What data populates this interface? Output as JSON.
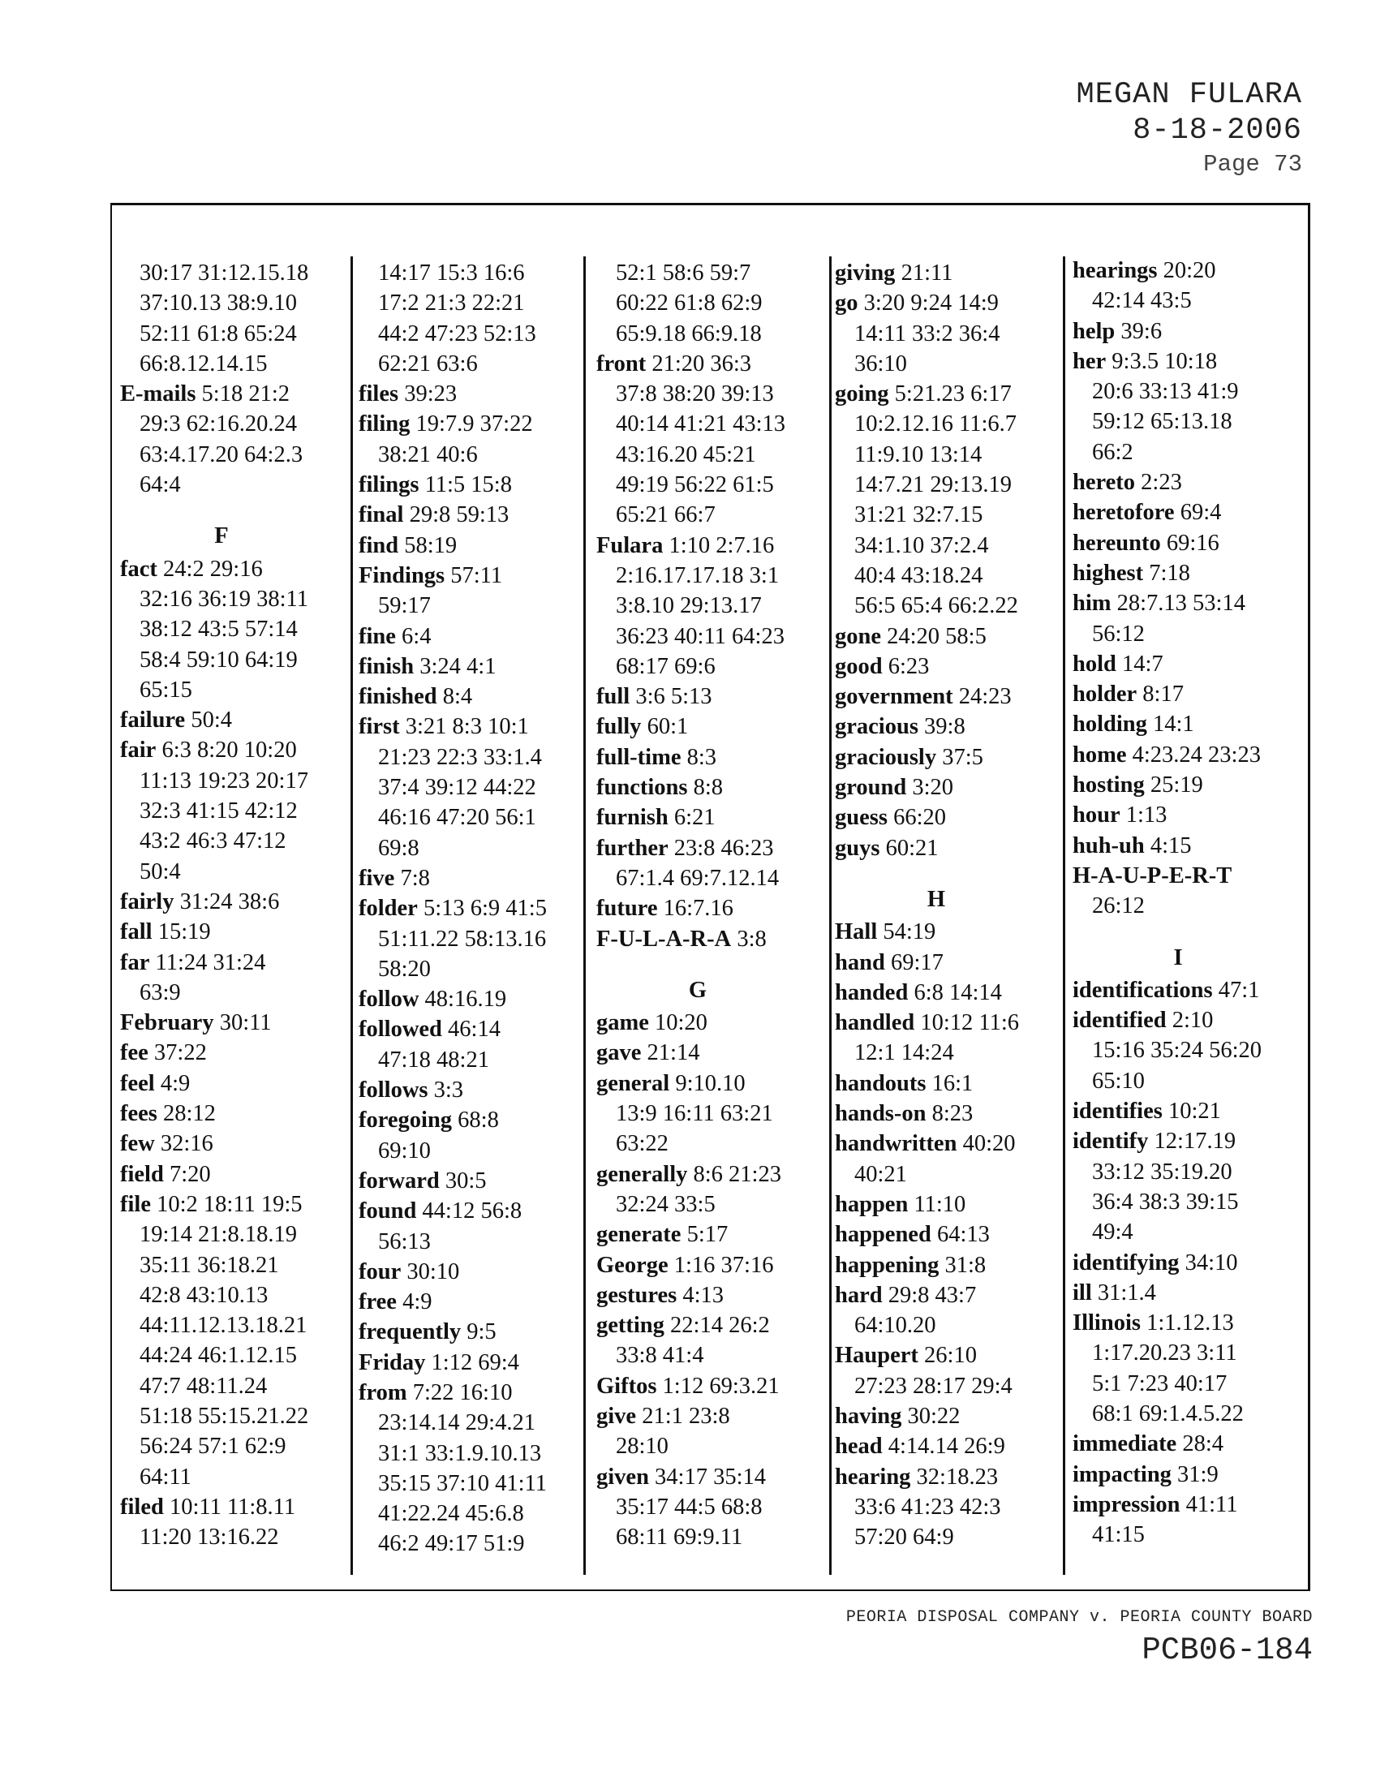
{
  "header": {
    "deponent": "MEGAN FULARA",
    "date": "8-18-2006",
    "page": "Page 73"
  },
  "footer": {
    "case_caption": "PEORIA DISPOSAL COMPANY v. PEORIA COUNTY BOARD",
    "case_number": "PCB06-184"
  },
  "columns": [
    {
      "entries": [
        {
          "term": "",
          "lines": [
            "30:17 31:12.15.18",
            "37:10.13 38:9.10",
            "52:11 61:8 65:24",
            "66:8.12.14.15"
          ]
        },
        {
          "term": "E-mails",
          "lines": [
            "5:18 21:2",
            "29:3 62:16.20.24",
            "63:4.17.20 64:2.3",
            "64:4"
          ]
        },
        {
          "letter": "F"
        },
        {
          "term": "fact",
          "lines": [
            "24:2 29:16",
            "32:16 36:19 38:11",
            "38:12 43:5 57:14",
            "58:4 59:10 64:19",
            "65:15"
          ]
        },
        {
          "term": "failure",
          "lines": [
            "50:4"
          ]
        },
        {
          "term": "fair",
          "lines": [
            "6:3 8:20 10:20",
            "11:13 19:23 20:17",
            "32:3 41:15 42:12",
            "43:2 46:3 47:12",
            "50:4"
          ]
        },
        {
          "term": "fairly",
          "lines": [
            "31:24 38:6"
          ]
        },
        {
          "term": "fall",
          "lines": [
            "15:19"
          ]
        },
        {
          "term": "far",
          "lines": [
            "11:24 31:24",
            "63:9"
          ]
        },
        {
          "term": "February",
          "lines": [
            "30:11"
          ]
        },
        {
          "term": "fee",
          "lines": [
            "37:22"
          ]
        },
        {
          "term": "feel",
          "lines": [
            "4:9"
          ]
        },
        {
          "term": "fees",
          "lines": [
            "28:12"
          ]
        },
        {
          "term": "few",
          "lines": [
            "32:16"
          ]
        },
        {
          "term": "field",
          "lines": [
            "7:20"
          ]
        },
        {
          "term": "file",
          "lines": [
            "10:2 18:11 19:5",
            "19:14 21:8.18.19",
            "35:11 36:18.21",
            "42:8 43:10.13",
            "44:11.12.13.18.21",
            "44:24 46:1.12.15",
            "47:7 48:11.24",
            "51:18 55:15.21.22",
            "56:24 57:1 62:9",
            "64:11"
          ]
        },
        {
          "term": "filed",
          "lines": [
            "10:11 11:8.11",
            "11:20 13:16.22"
          ]
        }
      ]
    },
    {
      "entries": [
        {
          "term": "",
          "lines": [
            "14:17 15:3 16:6",
            "17:2 21:3 22:21",
            "44:2 47:23 52:13",
            "62:21 63:6"
          ]
        },
        {
          "term": "files",
          "lines": [
            "39:23"
          ]
        },
        {
          "term": "filing",
          "lines": [
            "19:7.9 37:22",
            "38:21 40:6"
          ]
        },
        {
          "term": "filings",
          "lines": [
            "11:5 15:8"
          ]
        },
        {
          "term": "final",
          "lines": [
            "29:8 59:13"
          ]
        },
        {
          "term": "find",
          "lines": [
            "58:19"
          ]
        },
        {
          "term": "Findings",
          "lines": [
            "57:11",
            "59:17"
          ]
        },
        {
          "term": "fine",
          "lines": [
            "6:4"
          ]
        },
        {
          "term": "finish",
          "lines": [
            "3:24 4:1"
          ]
        },
        {
          "term": "finished",
          "lines": [
            "8:4"
          ]
        },
        {
          "term": "first",
          "lines": [
            "3:21 8:3 10:1",
            "21:23 22:3 33:1.4",
            "37:4 39:12 44:22",
            "46:16 47:20 56:1",
            "69:8"
          ]
        },
        {
          "term": "five",
          "lines": [
            "7:8"
          ]
        },
        {
          "term": "folder",
          "lines": [
            "5:13 6:9 41:5",
            "51:11.22 58:13.16",
            "58:20"
          ]
        },
        {
          "term": "follow",
          "lines": [
            "48:16.19"
          ]
        },
        {
          "term": "followed",
          "lines": [
            "46:14",
            "47:18 48:21"
          ]
        },
        {
          "term": "follows",
          "lines": [
            "3:3"
          ]
        },
        {
          "term": "foregoing",
          "lines": [
            "68:8",
            "69:10"
          ]
        },
        {
          "term": "forward",
          "lines": [
            "30:5"
          ]
        },
        {
          "term": "found",
          "lines": [
            "44:12 56:8",
            "56:13"
          ]
        },
        {
          "term": "four",
          "lines": [
            "30:10"
          ]
        },
        {
          "term": "free",
          "lines": [
            "4:9"
          ]
        },
        {
          "term": "frequently",
          "lines": [
            "9:5"
          ]
        },
        {
          "term": "Friday",
          "lines": [
            "1:12 69:4"
          ]
        },
        {
          "term": "from",
          "lines": [
            "7:22 16:10",
            "23:14.14 29:4.21",
            "31:1 33:1.9.10.13",
            "35:15 37:10 41:11",
            "41:22.24 45:6.8",
            "46:2 49:17 51:9"
          ]
        }
      ]
    },
    {
      "entries": [
        {
          "term": "",
          "lines": [
            "52:1 58:6 59:7",
            "60:22 61:8 62:9",
            "65:9.18 66:9.18"
          ]
        },
        {
          "term": "front",
          "lines": [
            "21:20 36:3",
            "37:8 38:20 39:13",
            "40:14 41:21 43:13",
            "43:16.20 45:21",
            "49:19 56:22 61:5",
            "65:21 66:7"
          ]
        },
        {
          "term": "Fulara",
          "lines": [
            "1:10 2:7.16",
            "2:16.17.17.18 3:1",
            "3:8.10 29:13.17",
            "36:23 40:11 64:23",
            "68:17 69:6"
          ]
        },
        {
          "term": "full",
          "lines": [
            "3:6 5:13"
          ]
        },
        {
          "term": "fully",
          "lines": [
            "60:1"
          ]
        },
        {
          "term": "full-time",
          "lines": [
            "8:3"
          ]
        },
        {
          "term": "functions",
          "lines": [
            "8:8"
          ]
        },
        {
          "term": "furnish",
          "lines": [
            "6:21"
          ]
        },
        {
          "term": "further",
          "lines": [
            "23:8 46:23",
            "67:1.4 69:7.12.14"
          ]
        },
        {
          "term": "future",
          "lines": [
            "16:7.16"
          ]
        },
        {
          "term": "F-U-L-A-R-A",
          "lines": [
            "3:8"
          ]
        },
        {
          "letter": "G"
        },
        {
          "term": "game",
          "lines": [
            "10:20"
          ]
        },
        {
          "term": "gave",
          "lines": [
            "21:14"
          ]
        },
        {
          "term": "general",
          "lines": [
            "9:10.10",
            "13:9 16:11 63:21",
            "63:22"
          ]
        },
        {
          "term": "generally",
          "lines": [
            "8:6 21:23",
            "32:24 33:5"
          ]
        },
        {
          "term": "generate",
          "lines": [
            "5:17"
          ]
        },
        {
          "term": "George",
          "lines": [
            "1:16 37:16"
          ]
        },
        {
          "term": "gestures",
          "lines": [
            "4:13"
          ]
        },
        {
          "term": "getting",
          "lines": [
            "22:14 26:2",
            "33:8 41:4"
          ]
        },
        {
          "term": "Giftos",
          "lines": [
            "1:12 69:3.21"
          ]
        },
        {
          "term": "give",
          "lines": [
            "21:1 23:8",
            "28:10"
          ]
        },
        {
          "term": "given",
          "lines": [
            "34:17 35:14",
            "35:17 44:5 68:8",
            "68:11 69:9.11"
          ]
        }
      ]
    },
    {
      "entries": [
        {
          "term": "giving",
          "lines": [
            "21:11"
          ]
        },
        {
          "term": "go",
          "lines": [
            "3:20 9:24 14:9",
            "14:11 33:2 36:4",
            "36:10"
          ]
        },
        {
          "term": "going",
          "lines": [
            "5:21.23 6:17",
            "10:2.12.16 11:6.7",
            "11:9.10 13:14",
            "14:7.21 29:13.19",
            "31:21 32:7.15",
            "34:1.10 37:2.4",
            "40:4 43:18.24",
            "56:5 65:4 66:2.22"
          ]
        },
        {
          "term": "gone",
          "lines": [
            "24:20 58:5"
          ]
        },
        {
          "term": "good",
          "lines": [
            "6:23"
          ]
        },
        {
          "term": "government",
          "lines": [
            "24:23"
          ]
        },
        {
          "term": "gracious",
          "lines": [
            "39:8"
          ]
        },
        {
          "term": "graciously",
          "lines": [
            "37:5"
          ]
        },
        {
          "term": "ground",
          "lines": [
            "3:20"
          ]
        },
        {
          "term": "guess",
          "lines": [
            "66:20"
          ]
        },
        {
          "term": "guys",
          "lines": [
            "60:21"
          ]
        },
        {
          "letter": "H"
        },
        {
          "term": "Hall",
          "lines": [
            "54:19"
          ]
        },
        {
          "term": "hand",
          "lines": [
            "69:17"
          ]
        },
        {
          "term": "handed",
          "lines": [
            "6:8 14:14"
          ]
        },
        {
          "term": "handled",
          "lines": [
            "10:12 11:6",
            "12:1 14:24"
          ]
        },
        {
          "term": "handouts",
          "lines": [
            "16:1"
          ]
        },
        {
          "term": "hands-on",
          "lines": [
            "8:23"
          ]
        },
        {
          "term": "handwritten",
          "lines": [
            "40:20",
            "40:21"
          ]
        },
        {
          "term": "happen",
          "lines": [
            "11:10"
          ]
        },
        {
          "term": "happened",
          "lines": [
            "64:13"
          ]
        },
        {
          "term": "happening",
          "lines": [
            "31:8"
          ]
        },
        {
          "term": "hard",
          "lines": [
            "29:8 43:7",
            "64:10.20"
          ]
        },
        {
          "term": "Haupert",
          "lines": [
            "26:10",
            "27:23 28:17 29:4"
          ]
        },
        {
          "term": "having",
          "lines": [
            "30:22"
          ]
        },
        {
          "term": "head",
          "lines": [
            "4:14.14 26:9"
          ]
        },
        {
          "term": "hearing",
          "lines": [
            "32:18.23",
            "33:6 41:23 42:3",
            "57:20 64:9"
          ]
        }
      ]
    },
    {
      "entries": [
        {
          "term": "hearings",
          "lines": [
            "20:20",
            "42:14 43:5"
          ]
        },
        {
          "term": "help",
          "lines": [
            "39:6"
          ]
        },
        {
          "term": "her",
          "lines": [
            "9:3.5 10:18",
            "20:6 33:13 41:9",
            "59:12 65:13.18",
            "66:2"
          ]
        },
        {
          "term": "hereto",
          "lines": [
            "2:23"
          ]
        },
        {
          "term": "heretofore",
          "lines": [
            "69:4"
          ]
        },
        {
          "term": "hereunto",
          "lines": [
            "69:16"
          ]
        },
        {
          "term": "highest",
          "lines": [
            "7:18"
          ]
        },
        {
          "term": "him",
          "lines": [
            "28:7.13 53:14",
            "56:12"
          ]
        },
        {
          "term": "hold",
          "lines": [
            "14:7"
          ]
        },
        {
          "term": "holder",
          "lines": [
            "8:17"
          ]
        },
        {
          "term": "holding",
          "lines": [
            "14:1"
          ]
        },
        {
          "term": "home",
          "lines": [
            "4:23.24 23:23"
          ]
        },
        {
          "term": "hosting",
          "lines": [
            "25:19"
          ]
        },
        {
          "term": "hour",
          "lines": [
            "1:13"
          ]
        },
        {
          "term": "huh-uh",
          "lines": [
            "4:15"
          ]
        },
        {
          "term": "H-A-U-P-E-R-T",
          "lines": [
            "",
            "26:12"
          ]
        },
        {
          "letter": "I"
        },
        {
          "term": "identifications",
          "lines": [
            "47:1"
          ]
        },
        {
          "term": "identified",
          "lines": [
            "2:10",
            "15:16 35:24 56:20",
            "65:10"
          ]
        },
        {
          "term": "identifies",
          "lines": [
            "10:21"
          ]
        },
        {
          "term": "identify",
          "lines": [
            "12:17.19",
            "33:12 35:19.20",
            "36:4 38:3 39:15",
            "49:4"
          ]
        },
        {
          "term": "identifying",
          "lines": [
            "34:10"
          ]
        },
        {
          "term": "ill",
          "lines": [
            "31:1.4"
          ]
        },
        {
          "term": "Illinois",
          "lines": [
            "1:1.12.13",
            "1:17.20.23 3:11",
            "5:1 7:23 40:17",
            "68:1 69:1.4.5.22"
          ]
        },
        {
          "term": "immediate",
          "lines": [
            "28:4"
          ]
        },
        {
          "term": "impacting",
          "lines": [
            "31:9"
          ]
        },
        {
          "term": "impression",
          "lines": [
            "41:11",
            "41:15"
          ]
        }
      ]
    }
  ]
}
